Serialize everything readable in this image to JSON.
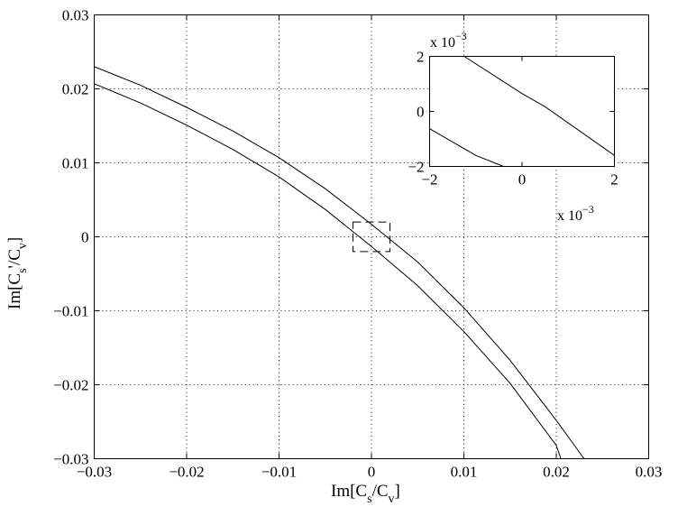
{
  "chart_data": {
    "type": "line",
    "title": "",
    "xlabel": "Im[C_s/C_v]",
    "ylabel": "Im[C_s'/C_v]",
    "xlim": [
      -0.03,
      0.03
    ],
    "ylim": [
      -0.03,
      0.03
    ],
    "xticks": [
      -0.03,
      -0.02,
      -0.01,
      0,
      0.01,
      0.02,
      0.03
    ],
    "yticks": [
      -0.03,
      -0.02,
      -0.01,
      0,
      0.01,
      0.02,
      0.03
    ],
    "xtick_labels": [
      "−0.03",
      "−0.02",
      "−0.01",
      "0",
      "0.01",
      "0.02",
      "0.03"
    ],
    "ytick_labels": [
      "−0.03",
      "−0.02",
      "−0.01",
      "0",
      "0.01",
      "0.02",
      "0.03"
    ],
    "grid": true,
    "series": [
      {
        "x": [
          -0.03,
          -0.025,
          -0.02,
          -0.015,
          -0.01,
          -0.005,
          0,
          0.005,
          0.01,
          0.015,
          0.02,
          0.023
        ],
        "y": [
          0.023,
          0.0205,
          0.0175,
          0.0143,
          0.0107,
          0.0065,
          0.0017,
          -0.0034,
          -0.0096,
          -0.0167,
          -0.0248,
          -0.03
        ]
      },
      {
        "x": [
          -0.03,
          -0.025,
          -0.02,
          -0.015,
          -0.01,
          -0.005,
          0,
          0.005,
          0.01,
          0.015,
          0.02,
          0.0205
        ],
        "y": [
          0.0207,
          0.0181,
          0.0151,
          0.0118,
          0.0081,
          0.0037,
          -0.0013,
          -0.0066,
          -0.0128,
          -0.0198,
          -0.0282,
          -0.03
        ]
      }
    ],
    "zoom_region": {
      "x": [
        -0.002,
        0.002
      ],
      "y": [
        -0.002,
        0.002
      ]
    },
    "inset": {
      "xlim": [
        -0.002,
        0.002
      ],
      "ylim": [
        -0.002,
        0.002
      ],
      "xticks": [
        -0.002,
        0,
        0.002
      ],
      "yticks": [
        -0.002,
        0,
        0.002
      ],
      "xtick_labels": [
        "−2",
        "0",
        "2"
      ],
      "ytick_labels": [
        "−2",
        "0",
        "2"
      ],
      "x_exponent_label": "x 10",
      "x_exponent_power": "−3",
      "y_exponent_label": "x 10",
      "y_exponent_power": "−3",
      "series": [
        {
          "x": [
            -0.00125,
            0,
            0.0005,
            0.002
          ],
          "y": [
            0.002,
            0.00065,
            0.00017,
            -0.0016
          ]
        },
        {
          "x": [
            -0.002,
            -0.001,
            -0.0004
          ],
          "y": [
            -0.00063,
            -0.0016,
            -0.002
          ]
        }
      ]
    }
  }
}
